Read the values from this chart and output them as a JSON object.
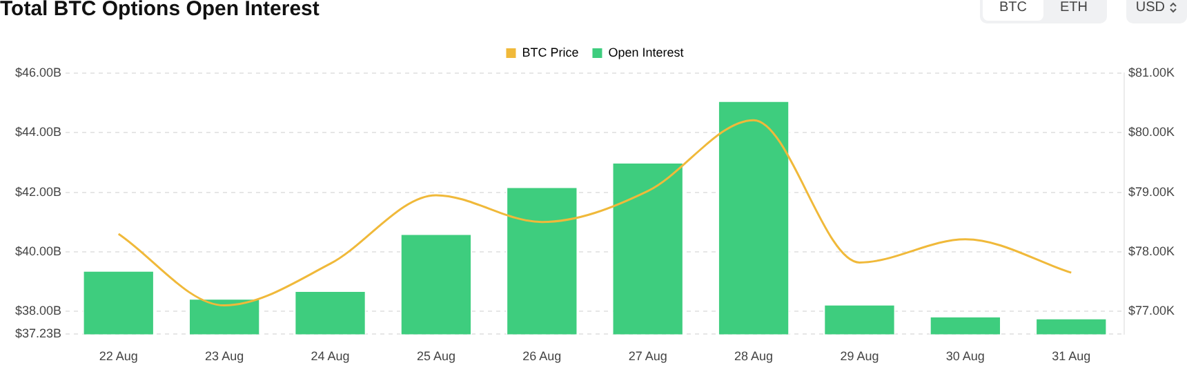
{
  "chart_data": {
    "type": "bar",
    "title": "Total BTC Options Open Interest",
    "categories": [
      "22 Aug",
      "23 Aug",
      "24 Aug",
      "25 Aug",
      "26 Aug",
      "27 Aug",
      "28 Aug",
      "29 Aug",
      "30 Aug",
      "31 Aug"
    ],
    "series": [
      {
        "name": "BTC Price",
        "type": "line",
        "axis": "y2",
        "color": "#f0b93a",
        "values": [
          78.3,
          77.1,
          77.8,
          78.95,
          78.5,
          79.02,
          80.21,
          77.82,
          78.21,
          77.65
        ]
      },
      {
        "name": "Open Interest",
        "color": "#3ecd7e",
        "values": [
          39.38,
          38.44,
          38.7,
          40.61,
          42.19,
          43.01,
          45.08,
          38.24,
          37.84,
          37.78
        ]
      }
    ],
    "ylim": [
      37.23,
      46
    ],
    "yticks": [
      {
        "value": 37.23,
        "label": "$37.23B"
      },
      {
        "value": 38,
        "label": "$38.00B"
      },
      {
        "value": 40,
        "label": "$40.00B"
      },
      {
        "value": 42,
        "label": "$42.00B"
      },
      {
        "value": 44,
        "label": "$44.00B"
      },
      {
        "value": 46,
        "label": "$46.00B"
      }
    ],
    "y2lim": [
      76.615,
      81
    ],
    "y2ticks": [
      {
        "value": 77,
        "label": "$77.00K"
      },
      {
        "value": 78,
        "label": "$78.00K"
      },
      {
        "value": 79,
        "label": "$79.00K"
      },
      {
        "value": 80,
        "label": "$80.00K"
      },
      {
        "value": 81,
        "label": "$81.00K"
      }
    ],
    "grid": "y",
    "legend": "top",
    "marker": "none",
    "line_style": "solid",
    "annotations": [
      "BTC",
      "ETH",
      "USD"
    ]
  }
}
